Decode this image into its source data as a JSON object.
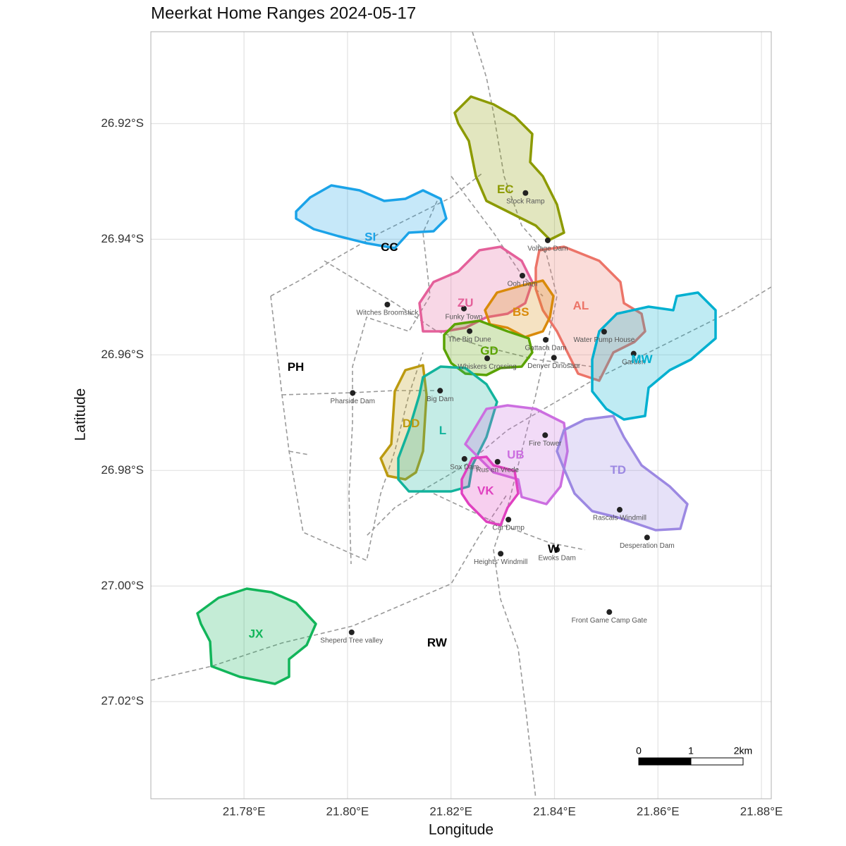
{
  "map": {
    "title": "Meerkat Home Ranges 2024-05-17",
    "x_label": "Longitude",
    "y_label": "Latitude",
    "xlim": [
      21.762,
      21.8819
    ],
    "ylim": [
      -26.9041,
      -27.0368
    ],
    "xticks": [
      {
        "value": 21.78,
        "label": "21.78°E"
      },
      {
        "value": 21.8,
        "label": "21.80°E"
      },
      {
        "value": 21.82,
        "label": "21.82°E"
      },
      {
        "value": 21.84,
        "label": "21.84°E"
      },
      {
        "value": 21.86,
        "label": "21.86°E"
      },
      {
        "value": 21.88,
        "label": "21.88°E"
      }
    ],
    "yticks": [
      {
        "value": -26.92,
        "label": "26.92°S"
      },
      {
        "value": -26.94,
        "label": "26.94°S"
      },
      {
        "value": -26.96,
        "label": "26.96°S"
      },
      {
        "value": -26.98,
        "label": "26.98°S"
      },
      {
        "value": -27.0,
        "label": "27.00°S"
      },
      {
        "value": -27.02,
        "label": "27.02°S"
      }
    ],
    "grid": true,
    "groups": [
      {
        "name": "EC",
        "color": "#8c9a00",
        "lon": 21.8305,
        "lat": -26.9315
      },
      {
        "name": "SI",
        "color": "#1ba3e8",
        "lon": 21.8044,
        "lat": -26.9397
      },
      {
        "name": "ZU",
        "color": "#e4609a",
        "lon": 21.8228,
        "lat": -26.9511
      },
      {
        "name": "BS",
        "color": "#d98a0a",
        "lon": 21.8335,
        "lat": -26.9527
      },
      {
        "name": "AL",
        "color": "#ec7468",
        "lon": 21.8451,
        "lat": -26.9516
      },
      {
        "name": "MW",
        "color": "#00b0d0",
        "lon": 21.8569,
        "lat": -26.9609
      },
      {
        "name": "GD",
        "color": "#5aa300",
        "lon": 21.8274,
        "lat": -26.9594
      },
      {
        "name": "DD",
        "color": "#bc9a10",
        "lon": 21.8123,
        "lat": -26.972
      },
      {
        "name": "L",
        "color": "#12b39c",
        "lon": 21.8184,
        "lat": -26.9732
      },
      {
        "name": "UB",
        "color": "#cc6ee0",
        "lon": 21.8325,
        "lat": -26.9774
      },
      {
        "name": "TD",
        "color": "#9c88e2",
        "lon": 21.8523,
        "lat": -26.98
      },
      {
        "name": "VK",
        "color": "#e040c0",
        "lon": 21.8267,
        "lat": -26.9836
      },
      {
        "name": "JX",
        "color": "#12b55a",
        "lon": 21.7823,
        "lat": -27.0084
      }
    ],
    "other_groups": [
      {
        "name": "CC",
        "lon": 21.8081,
        "lat": -26.9415
      },
      {
        "name": "PH",
        "lon": 21.79,
        "lat": -26.9622
      },
      {
        "name": "W",
        "lon": 21.8398,
        "lat": -26.9937
      },
      {
        "name": "RW",
        "lon": 21.8173,
        "lat": -27.0099
      }
    ],
    "landmarks": [
      {
        "name": "Stock Ramp",
        "lon": 21.8344,
        "lat": -26.932
      },
      {
        "name": "Voltage Dam",
        "lon": 21.8387,
        "lat": -26.9402
      },
      {
        "name": "Ooh Dam",
        "lon": 21.8338,
        "lat": -26.9463
      },
      {
        "name": "Witches Broomstick",
        "lon": 21.8077,
        "lat": -26.9513
      },
      {
        "name": "Funky Town",
        "lon": 21.8225,
        "lat": -26.952
      },
      {
        "name": "The Big Dune",
        "lon": 21.8236,
        "lat": -26.9559
      },
      {
        "name": "Gattaca Dam",
        "lon": 21.8383,
        "lat": -26.9574
      },
      {
        "name": "Water Pump House",
        "lon": 21.8496,
        "lat": -26.956
      },
      {
        "name": "Garden",
        "lon": 21.8553,
        "lat": -26.9598
      },
      {
        "name": "Denver Dinosaur",
        "lon": 21.8399,
        "lat": -26.9605
      },
      {
        "name": "Whiskers Crossing",
        "lon": 21.827,
        "lat": -26.9606
      },
      {
        "name": "Big Dam",
        "lon": 21.8179,
        "lat": -26.9662
      },
      {
        "name": "Pharside Dam",
        "lon": 21.801,
        "lat": -26.9666
      },
      {
        "name": "Fire Tower",
        "lon": 21.8382,
        "lat": -26.9739
      },
      {
        "name": "Sox Dam",
        "lon": 21.8226,
        "lat": -26.978
      },
      {
        "name": "Rus en Vrede",
        "lon": 21.829,
        "lat": -26.9785
      },
      {
        "name": "Car Dump",
        "lon": 21.8311,
        "lat": -26.9885
      },
      {
        "name": "Rascals Windmill",
        "lon": 21.8526,
        "lat": -26.9868
      },
      {
        "name": "Desperation Dam",
        "lon": 21.8579,
        "lat": -26.9916
      },
      {
        "name": "Heights' Windmill",
        "lon": 21.8296,
        "lat": -26.9944
      },
      {
        "name": "Ewoks Dam",
        "lon": 21.8405,
        "lat": -26.9937
      },
      {
        "name": "Front Game Camp Gate",
        "lon": 21.8506,
        "lat": -27.0045
      },
      {
        "name": "Sheperd Tree valley",
        "lon": 21.8008,
        "lat": -27.008
      }
    ],
    "scale_bar": {
      "labels": [
        "0",
        "1",
        "2km"
      ]
    }
  }
}
